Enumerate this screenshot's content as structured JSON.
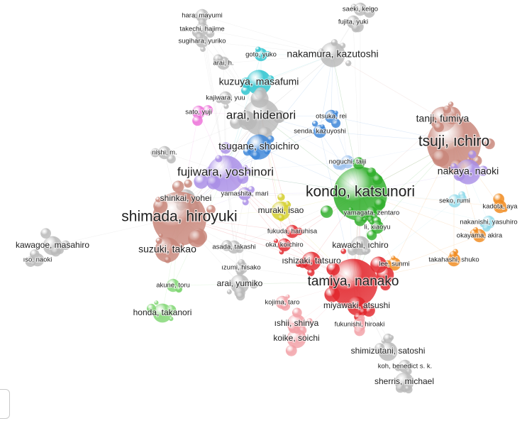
{
  "clusters": [
    {
      "name": "gray",
      "color": "#b9b9b9"
    },
    {
      "name": "brown",
      "color": "#c8867a"
    },
    {
      "name": "green",
      "color": "#2fae2a"
    },
    {
      "name": "red",
      "color": "#e2262c"
    },
    {
      "name": "purple",
      "color": "#a98ee6"
    },
    {
      "name": "cyan",
      "color": "#2cc4cf"
    },
    {
      "name": "blue",
      "color": "#3d86d8"
    },
    {
      "name": "yellow",
      "color": "#d4cf2b"
    },
    {
      "name": "pink",
      "color": "#ef8a90"
    },
    {
      "name": "magenta",
      "color": "#ec6fd8"
    },
    {
      "name": "orange",
      "color": "#f08a1e"
    },
    {
      "name": "lightgreen",
      "color": "#7fd672"
    },
    {
      "name": "skyblue",
      "color": "#8fd9e9"
    },
    {
      "name": "rose",
      "color": "#f2a0a6"
    },
    {
      "name": "lightblue",
      "color": "#9ec3ef"
    }
  ],
  "authors": [
    {
      "label": "hara, mayumi",
      "cluster": "gray",
      "weight": 1
    },
    {
      "label": "takechi, hajime",
      "cluster": "gray",
      "weight": 1
    },
    {
      "label": "sugihara, yuriko",
      "cluster": "gray",
      "weight": 1
    },
    {
      "label": "saeki, keigo",
      "cluster": "gray",
      "weight": 1
    },
    {
      "label": "fujita, yuki",
      "cluster": "gray",
      "weight": 1
    },
    {
      "label": "goto, yuko",
      "cluster": "cyan",
      "weight": 1
    },
    {
      "label": "nakamura, kazutoshi",
      "cluster": "gray",
      "weight": 3
    },
    {
      "label": "arai, h.",
      "cluster": "gray",
      "weight": 1
    },
    {
      "label": "kuzuya, masafumi",
      "cluster": "cyan",
      "weight": 3
    },
    {
      "label": "kajiwara, yuu",
      "cluster": "gray",
      "weight": 1
    },
    {
      "label": "sato, yuji",
      "cluster": "magenta",
      "weight": 1
    },
    {
      "label": "arai, hidenori",
      "cluster": "gray",
      "weight": 5
    },
    {
      "label": "otsuka, rei",
      "cluster": "blue",
      "weight": 1
    },
    {
      "label": "senda, kazuyoshi",
      "cluster": "blue",
      "weight": 1
    },
    {
      "label": "tanji, fumiya",
      "cluster": "brown",
      "weight": 3
    },
    {
      "label": "tsuji, ıchiro",
      "cluster": "brown",
      "weight": 8
    },
    {
      "label": "tsugane, shoichiro",
      "cluster": "blue",
      "weight": 3
    },
    {
      "label": "nishi, m.",
      "cluster": "gray",
      "weight": 1
    },
    {
      "label": "noguchi, taiji",
      "cluster": "lightblue",
      "weight": 1
    },
    {
      "label": "nakaya, naoki",
      "cluster": "purple",
      "weight": 3
    },
    {
      "label": "fujiwara, yoshinori",
      "cluster": "purple",
      "weight": 5
    },
    {
      "label": "yamashita, mari",
      "cluster": "purple",
      "weight": 1
    },
    {
      "label": "kondo, katsunori",
      "cluster": "green",
      "weight": 8
    },
    {
      "label": "shinkai, yohei",
      "cluster": "gray",
      "weight": 2
    },
    {
      "label": "seko, rumi",
      "cluster": "skyblue",
      "weight": 1
    },
    {
      "label": "kadota, aya",
      "cluster": "orange",
      "weight": 1
    },
    {
      "label": "yamagata, zentaro",
      "cluster": "green",
      "weight": 1
    },
    {
      "label": "shimada, hiroyuki",
      "cluster": "brown",
      "weight": 8
    },
    {
      "label": "muraki, isao",
      "cluster": "yellow",
      "weight": 2
    },
    {
      "label": "li, xiaoyu",
      "cluster": "green",
      "weight": 1
    },
    {
      "label": "nakanishi, yasuhiro",
      "cluster": "skyblue",
      "weight": 1
    },
    {
      "label": "okayama, akira",
      "cluster": "orange",
      "weight": 1
    },
    {
      "label": "fukuda, haruhisa",
      "cluster": "red",
      "weight": 1
    },
    {
      "label": "kawagoe, masahiro",
      "cluster": "gray",
      "weight": 2
    },
    {
      "label": "oka, koichiro",
      "cluster": "red",
      "weight": 1
    },
    {
      "label": "suzuki, takao",
      "cluster": "brown",
      "weight": 3
    },
    {
      "label": "asada, takashi",
      "cluster": "gray",
      "weight": 1
    },
    {
      "label": "kawachi, ıchiro",
      "cluster": "gray",
      "weight": 2
    },
    {
      "label": "ıso, naoki",
      "cluster": "gray",
      "weight": 1
    },
    {
      "label": "ıshizaki, tatsuro",
      "cluster": "red",
      "weight": 2
    },
    {
      "label": "takahashi, shuko",
      "cluster": "orange",
      "weight": 1
    },
    {
      "label": "ızumi, hisako",
      "cluster": "gray",
      "weight": 1
    },
    {
      "label": "lee, sunmi",
      "cluster": "orange",
      "weight": 1
    },
    {
      "label": "tamiya, nanako",
      "cluster": "red",
      "weight": 7
    },
    {
      "label": "akune, toru",
      "cluster": "lightgreen",
      "weight": 1
    },
    {
      "label": "arai, yumiko",
      "cluster": "gray",
      "weight": 2
    },
    {
      "label": "kojima, taro",
      "cluster": "rose",
      "weight": 1
    },
    {
      "label": "miyawaki, atsushi",
      "cluster": "red",
      "weight": 2
    },
    {
      "label": "honda, takanori",
      "cluster": "lightgreen",
      "weight": 2
    },
    {
      "label": "ıshii, shinya",
      "cluster": "rose",
      "weight": 2
    },
    {
      "label": "fukunishi, hiroaki",
      "cluster": "rose",
      "weight": 1
    },
    {
      "label": "koike, soichi",
      "cluster": "rose",
      "weight": 2
    },
    {
      "label": "shimizutani, satoshi",
      "cluster": "gray",
      "weight": 2
    },
    {
      "label": "koh, benedict s. k.",
      "cluster": "gray",
      "weight": 1
    },
    {
      "label": "sherris, michael",
      "cluster": "gray",
      "weight": 2
    }
  ]
}
